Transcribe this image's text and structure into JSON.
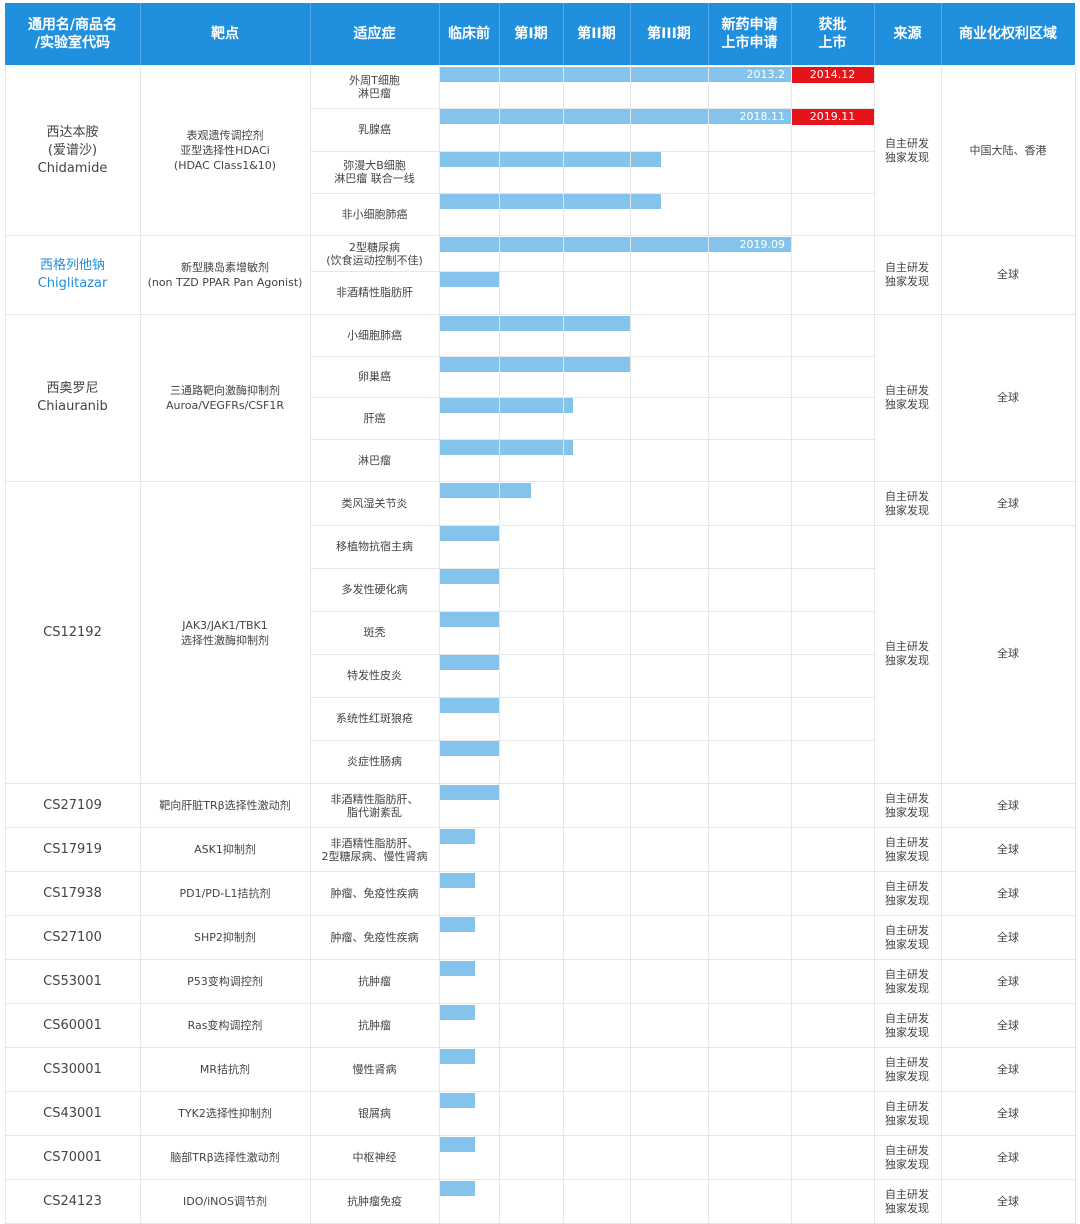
{
  "chart_data": {
    "type": "table",
    "headers": [
      "通用名/商品名\n/实验室代码",
      "靶点",
      "适应症",
      "临床前",
      "第I期",
      "第II期",
      "第III期",
      "新药申请\n上市申请",
      "获批\n上市",
      "来源",
      "商业化权利区域"
    ],
    "stages": [
      "临床前",
      "第I期",
      "第II期",
      "第III期",
      "新药申请 上市申请",
      "获批 上市"
    ],
    "drugs": [
      {
        "name": "西达本胺\n(爱谱沙)\nChidamide",
        "highlight": false,
        "target": "表观遗传调控剂\n亚型选择性HDACi\n(HDAC Class1&10)",
        "source": "自主研发\n独家发现",
        "region": "中国大陆、香港",
        "indications": [
          {
            "name": "外周T细胞\n淋巴瘤",
            "progress": 5,
            "filing_date": "2013.2",
            "approval_date": "2014.12"
          },
          {
            "name": "乳腺癌",
            "progress": 5,
            "filing_date": "2018.11",
            "approval_date": "2019.11"
          },
          {
            "name": "弥漫大B细胞\n淋巴瘤 联合一线",
            "progress": 3.4
          },
          {
            "name": "非小细胞肺癌",
            "progress": 3.4
          }
        ]
      },
      {
        "name": "西格列他钠\nChiglitazar",
        "highlight": true,
        "target": "新型胰岛素增敏剂\n(non TZD PPAR Pan Agonist)",
        "source": "自主研发\n独家发现",
        "region": "全球",
        "indications": [
          {
            "name": "2型糖尿病\n(饮食运动控制不佳)",
            "progress": 5,
            "filing_date": "2019.09"
          },
          {
            "name": "非酒精性脂肪肝",
            "progress": 1
          }
        ]
      },
      {
        "name": "西奥罗尼\nChiauranib",
        "highlight": false,
        "target": "三通路靶向激酶抑制剂\nAuroa/VEGFRs/CSF1R",
        "source": "自主研发\n独家发现",
        "region": "全球",
        "indications": [
          {
            "name": "小细胞肺癌",
            "progress": 3
          },
          {
            "name": "卵巢癌",
            "progress": 3
          },
          {
            "name": "肝癌",
            "progress": 2.15
          },
          {
            "name": "淋巴瘤",
            "progress": 2.15
          }
        ]
      },
      {
        "name": "CS12192",
        "highlight": false,
        "target": "JAK3/JAK1/TBK1\n选择性激酶抑制剂",
        "indications": [
          {
            "name": "类风湿关节炎",
            "progress": 1.5,
            "source": "自主研发\n独家发现",
            "region": "全球"
          },
          {
            "name": "移植物抗宿主病",
            "progress": 1
          },
          {
            "name": "多发性硬化病",
            "progress": 1
          },
          {
            "name": "斑秃",
            "progress": 1
          },
          {
            "name": "特发性皮炎",
            "progress": 1
          },
          {
            "name": "系统性红斑狼疮",
            "progress": 1
          },
          {
            "name": "炎症性肠病",
            "progress": 1
          }
        ],
        "group_source": "自主研发\n独家发现",
        "group_region": "全球"
      },
      {
        "name": "CS27109",
        "target": "靶向肝脏TRβ选择性激动剂",
        "source": "自主研发\n独家发现",
        "region": "全球",
        "indications": [
          {
            "name": "非酒精性脂肪肝、\n脂代谢紊乱",
            "progress": 1
          }
        ]
      },
      {
        "name": "CS17919",
        "target": "ASK1抑制剂",
        "source": "自主研发\n独家发现",
        "region": "全球",
        "indications": [
          {
            "name": "非酒精性脂肪肝、\n2型糖尿病、慢性肾病",
            "progress": 0.6
          }
        ]
      },
      {
        "name": "CS17938",
        "target": "PD1/PD-L1拮抗剂",
        "source": "自主研发\n独家发现",
        "region": "全球",
        "indications": [
          {
            "name": "肿瘤、免疫性疾病",
            "progress": 0.6
          }
        ]
      },
      {
        "name": "CS27100",
        "target": "SHP2抑制剂",
        "source": "自主研发\n独家发现",
        "region": "全球",
        "indications": [
          {
            "name": "肿瘤、免疫性疾病",
            "progress": 0.6
          }
        ]
      },
      {
        "name": "CS53001",
        "target": "P53变构调控剂",
        "source": "自主研发\n独家发现",
        "region": "全球",
        "indications": [
          {
            "name": "抗肿瘤",
            "progress": 0.6
          }
        ]
      },
      {
        "name": "CS60001",
        "target": "Ras变构调控剂",
        "source": "自主研发\n独家发现",
        "region": "全球",
        "indications": [
          {
            "name": "抗肿瘤",
            "progress": 0.6
          }
        ]
      },
      {
        "name": "CS30001",
        "target": "MR拮抗剂",
        "source": "自主研发\n独家发现",
        "region": "全球",
        "indications": [
          {
            "name": "慢性肾病",
            "progress": 0.6
          }
        ]
      },
      {
        "name": "CS43001",
        "target": "TYK2选择性抑制剂",
        "source": "自主研发\n独家发现",
        "region": "全球",
        "indications": [
          {
            "name": "银屑病",
            "progress": 0.6
          }
        ]
      },
      {
        "name": "CS70001",
        "target": "脑部TRβ选择性激动剂",
        "source": "自主研发\n独家发现",
        "region": "全球",
        "indications": [
          {
            "name": "中枢神经",
            "progress": 0.6
          }
        ]
      },
      {
        "name": "CS24123",
        "target": "IDO/iNOS调节剂",
        "source": "自主研发\n独家发现",
        "region": "全球",
        "indications": [
          {
            "name": "抗肿瘤免疫",
            "progress": 0.6
          }
        ]
      }
    ],
    "colors": {
      "header": "#1f8fde",
      "bar": "#84c3ec",
      "approved": "#e5141b",
      "link": "#1f8fde"
    }
  }
}
